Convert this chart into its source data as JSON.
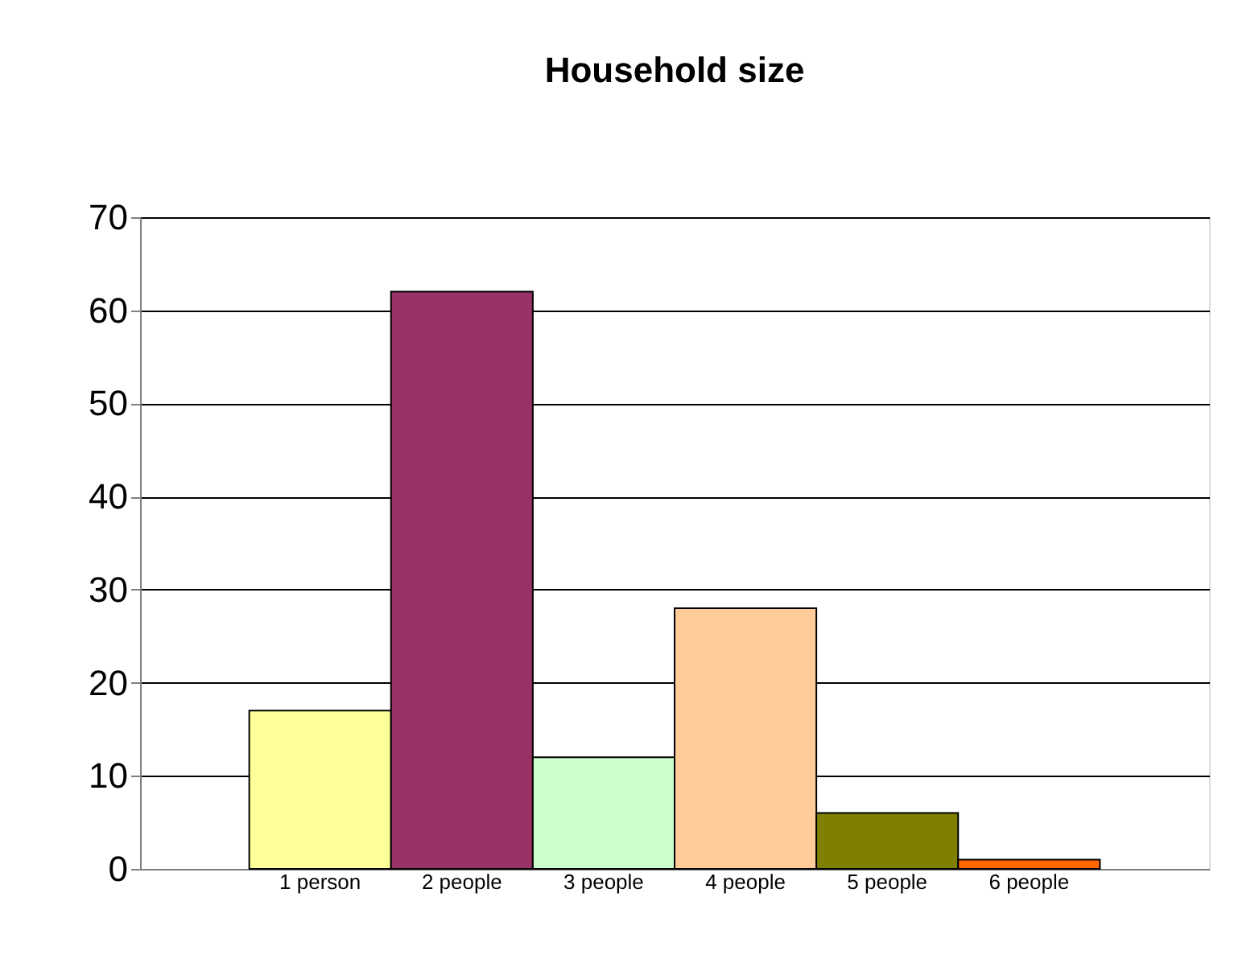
{
  "chart_data": {
    "type": "bar",
    "title": "Household size",
    "categories": [
      "1 person",
      "2 people",
      "3 people",
      "4 people",
      "5 people",
      "6 people"
    ],
    "values": [
      17,
      62,
      12,
      28,
      6,
      1
    ],
    "colors": [
      "#ffff99",
      "#993366",
      "#ccffcc",
      "#ffcc99",
      "#808000",
      "#ff6600"
    ],
    "ylim": [
      0,
      70
    ],
    "yticks": [
      0,
      10,
      20,
      30,
      40,
      50,
      60,
      70
    ],
    "grid": "y"
  }
}
